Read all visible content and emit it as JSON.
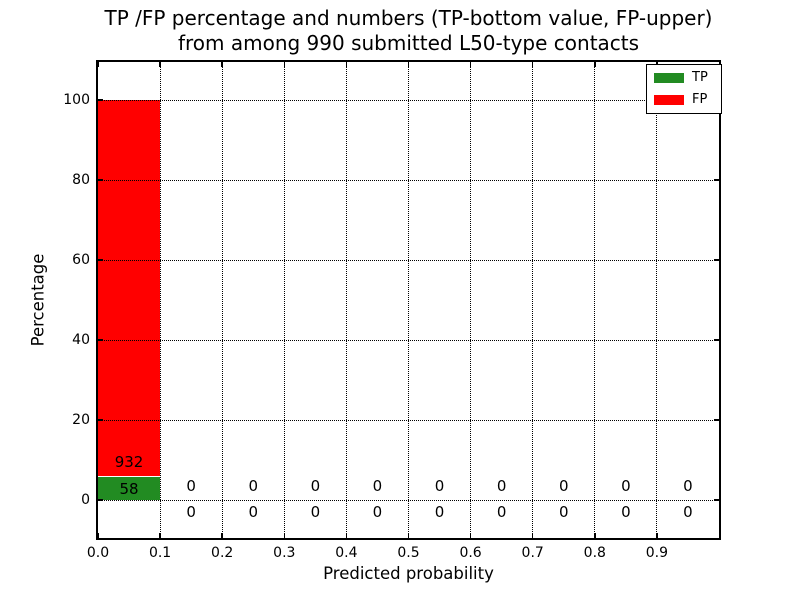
{
  "chart_data": {
    "type": "bar",
    "stacked": true,
    "title_line1": "TP /FP percentage and numbers (TP-bottom value, FP-upper)",
    "title_line2": "from among 990 submitted L50-type contacts",
    "xlabel": "Predicted probability",
    "ylabel": "Percentage",
    "total_contacts": 990,
    "bin_edges": [
      0.0,
      0.1,
      0.2,
      0.3,
      0.4,
      0.5,
      0.6,
      0.7,
      0.8,
      0.9,
      1.0
    ],
    "series": [
      {
        "name": "TP",
        "color": "#228b22",
        "counts": [
          58,
          0,
          0,
          0,
          0,
          0,
          0,
          0,
          0,
          0
        ]
      },
      {
        "name": "FP",
        "color": "#ff0000",
        "counts": [
          932,
          0,
          0,
          0,
          0,
          0,
          0,
          0,
          0,
          0
        ]
      }
    ],
    "xticks": [
      "0.0",
      "0.1",
      "0.2",
      "0.3",
      "0.4",
      "0.5",
      "0.6",
      "0.7",
      "0.8",
      "0.9"
    ],
    "yticks": [
      0,
      20,
      40,
      60,
      80,
      100
    ],
    "xlim": [
      0.0,
      1.0
    ],
    "ylim": [
      -9.5,
      109.5
    ],
    "grid": true,
    "grid_style": "dotted",
    "tick_direction": "in",
    "legend_position": "upper right",
    "label_note": "TP-bottom value, FP-upper"
  }
}
